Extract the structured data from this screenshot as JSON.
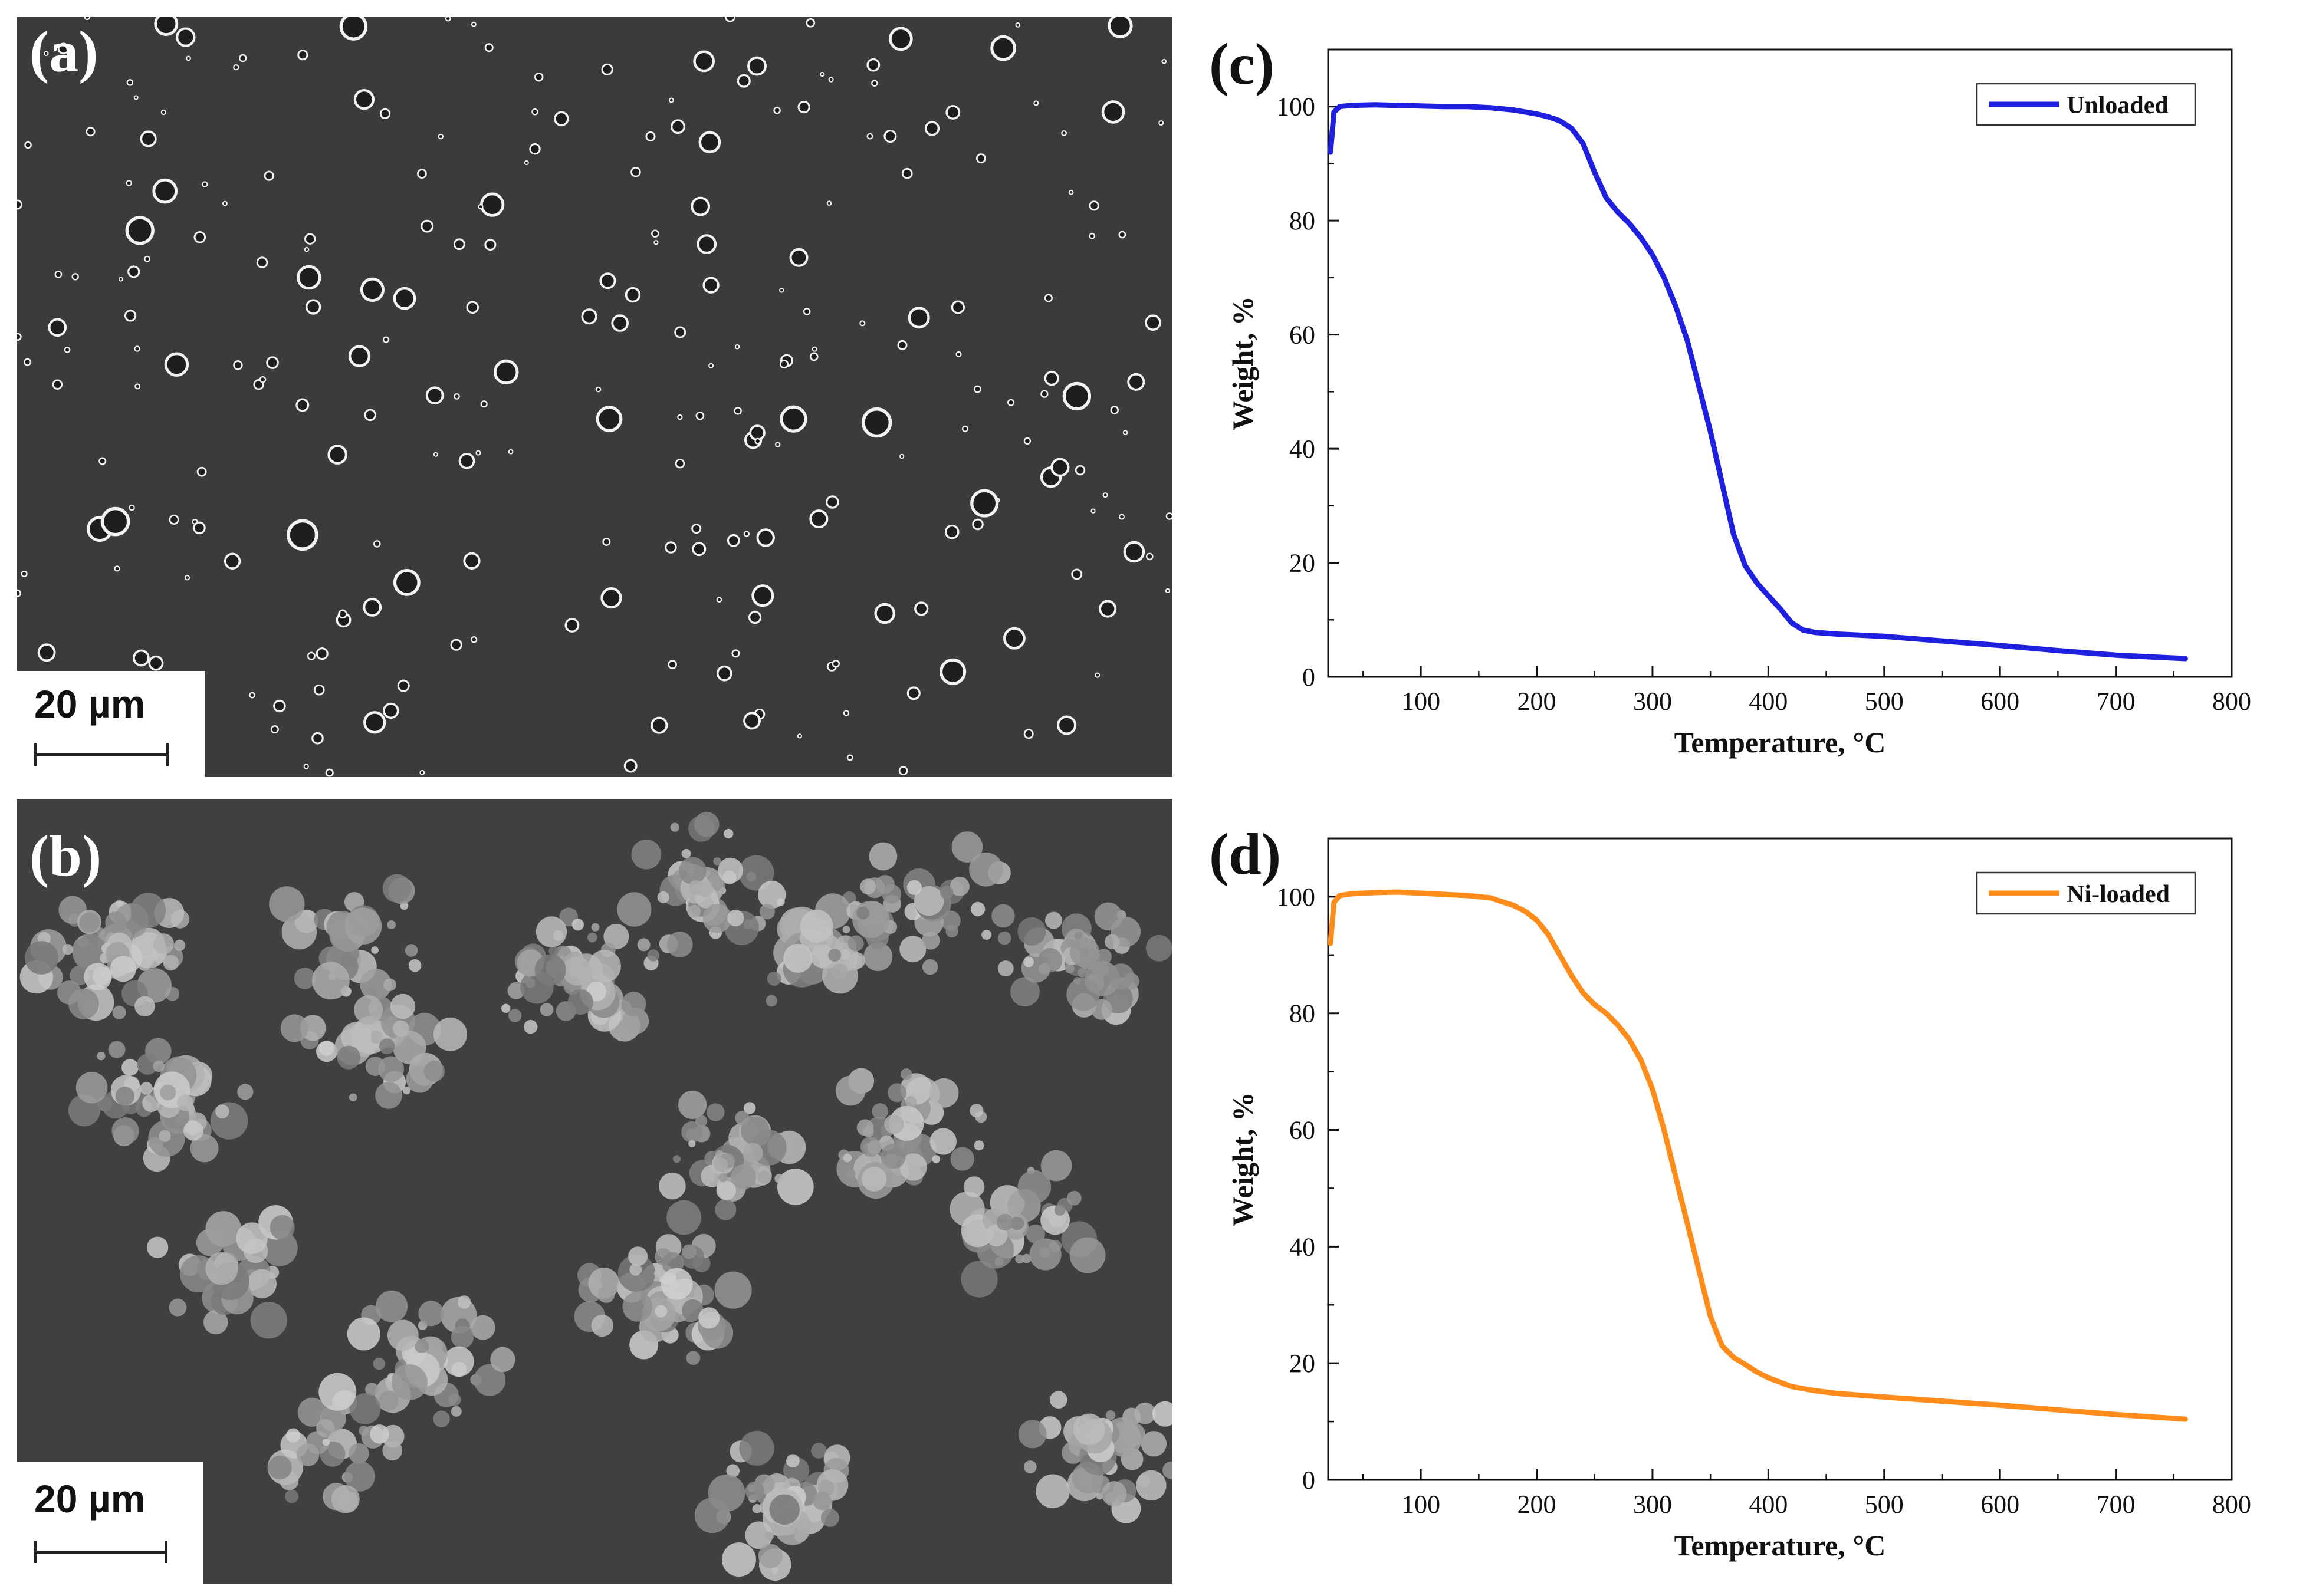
{
  "panels": {
    "a": {
      "letter": "(a)",
      "scale_label": "20 µm"
    },
    "b": {
      "letter": "(b)",
      "scale_label": "20 µm"
    }
  },
  "chart_data": [
    {
      "panel": "(c)",
      "type": "line",
      "xlabel": "Temperature, °C",
      "ylabel": "Weight, %",
      "xlim": [
        20,
        800
      ],
      "ylim": [
        0,
        110
      ],
      "xticks": [
        100,
        200,
        300,
        400,
        500,
        600,
        700,
        800
      ],
      "yticks": [
        0,
        20,
        40,
        60,
        80,
        100
      ],
      "grid": false,
      "legend_position": "top-right",
      "color": "#1f1fe0",
      "series": [
        {
          "name": "Unloaded",
          "x": [
            22,
            25,
            30,
            40,
            60,
            80,
            100,
            120,
            140,
            160,
            180,
            200,
            210,
            220,
            230,
            240,
            250,
            260,
            270,
            280,
            290,
            300,
            310,
            320,
            330,
            340,
            350,
            360,
            370,
            380,
            390,
            400,
            410,
            420,
            430,
            440,
            460,
            500,
            550,
            600,
            650,
            700,
            760
          ],
          "y": [
            92,
            99,
            100,
            100.2,
            100.3,
            100.2,
            100.1,
            100,
            100,
            99.8,
            99.4,
            98.7,
            98.2,
            97.5,
            96.2,
            93.5,
            88.5,
            84,
            81.5,
            79.5,
            77,
            74,
            70,
            65,
            59,
            51,
            43,
            34,
            25,
            19.5,
            16.5,
            14.2,
            12,
            9.5,
            8.2,
            7.8,
            7.5,
            7.1,
            6.3,
            5.5,
            4.6,
            3.8,
            3.2
          ]
        }
      ]
    },
    {
      "panel": "(d)",
      "type": "line",
      "xlabel": "Temperature, °C",
      "ylabel": "Weight, %",
      "xlim": [
        20,
        800
      ],
      "ylim": [
        0,
        110
      ],
      "xticks": [
        100,
        200,
        300,
        400,
        500,
        600,
        700,
        800
      ],
      "yticks": [
        0,
        20,
        40,
        60,
        80,
        100
      ],
      "grid": false,
      "legend_position": "top-right",
      "color": "#ff8c1a",
      "series": [
        {
          "name": "Ni-loaded",
          "x": [
            22,
            25,
            30,
            40,
            60,
            80,
            100,
            120,
            140,
            160,
            180,
            190,
            200,
            210,
            220,
            230,
            240,
            250,
            260,
            270,
            280,
            290,
            300,
            310,
            320,
            330,
            340,
            350,
            360,
            370,
            380,
            390,
            400,
            420,
            440,
            460,
            500,
            550,
            600,
            650,
            700,
            760
          ],
          "y": [
            92,
            99,
            100.2,
            100.5,
            100.7,
            100.8,
            100.6,
            100.4,
            100.2,
            99.8,
            98.5,
            97.5,
            96,
            93.5,
            90,
            86.5,
            83.5,
            81.5,
            80,
            78,
            75.5,
            72,
            67,
            60,
            52,
            44,
            36,
            28,
            23,
            21,
            19.8,
            18.5,
            17.5,
            16,
            15.3,
            14.8,
            14.2,
            13.5,
            12.8,
            12,
            11.2,
            10.4
          ]
        }
      ]
    }
  ]
}
